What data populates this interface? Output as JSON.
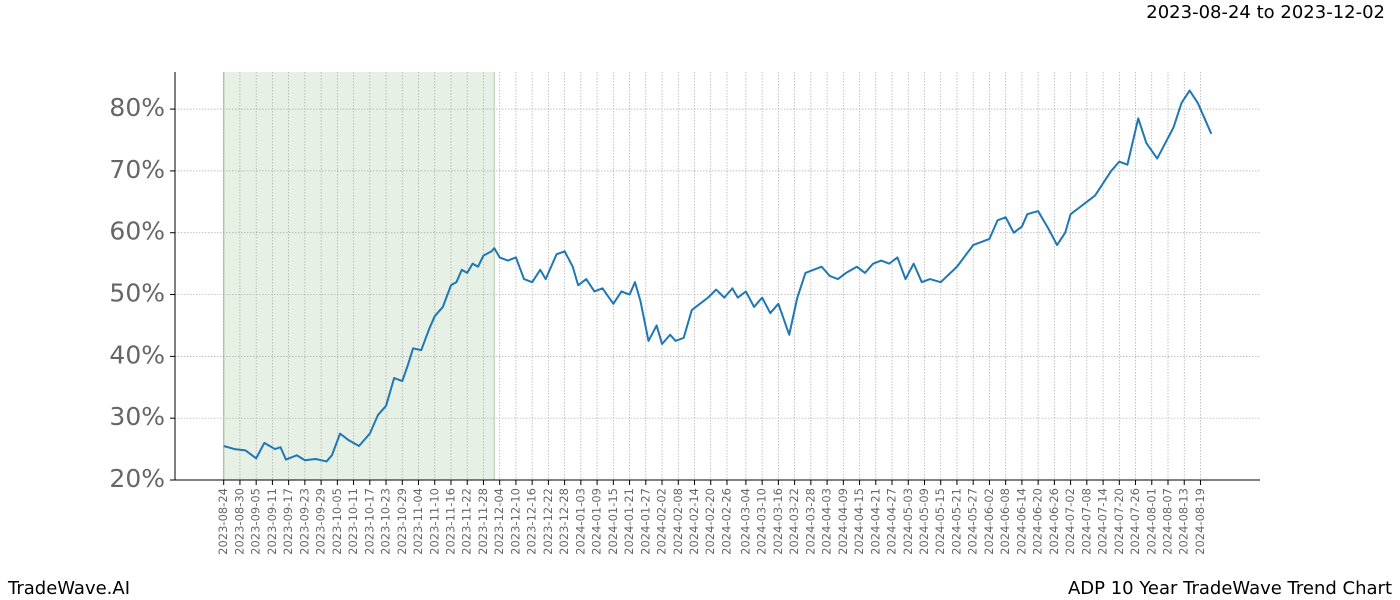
{
  "chart_data": {
    "type": "line",
    "title": "2023-08-24 to 2023-12-02",
    "brand": "TradeWave.AI",
    "subtitle": "ADP 10 Year TradeWave Trend Chart",
    "highlight": {
      "start": "2023-08-24",
      "end": "2023-12-02",
      "color": "#e6f0e4"
    },
    "grid": true,
    "xlim": [
      "2023-08-06",
      "2024-09-10"
    ],
    "xticks": [
      "2023-08-24",
      "2023-08-30",
      "2023-09-05",
      "2023-09-11",
      "2023-09-17",
      "2023-09-23",
      "2023-09-29",
      "2023-10-05",
      "2023-10-11",
      "2023-10-17",
      "2023-10-23",
      "2023-10-29",
      "2023-11-04",
      "2023-11-10",
      "2023-11-16",
      "2023-11-22",
      "2023-11-28",
      "2023-12-04",
      "2023-12-10",
      "2023-12-16",
      "2023-12-22",
      "2023-12-28",
      "2024-01-03",
      "2024-01-09",
      "2024-01-15",
      "2024-01-21",
      "2024-01-27",
      "2024-02-02",
      "2024-02-08",
      "2024-02-14",
      "2024-02-20",
      "2024-02-26",
      "2024-03-04",
      "2024-03-10",
      "2024-03-16",
      "2024-03-22",
      "2024-03-28",
      "2024-04-03",
      "2024-04-09",
      "2024-04-15",
      "2024-04-21",
      "2024-04-27",
      "2024-05-03",
      "2024-05-09",
      "2024-05-15",
      "2024-05-21",
      "2024-05-27",
      "2024-06-02",
      "2024-06-08",
      "2024-06-14",
      "2024-06-20",
      "2024-06-26",
      "2024-07-02",
      "2024-07-08",
      "2024-07-14",
      "2024-07-20",
      "2024-07-26",
      "2024-08-01",
      "2024-08-07",
      "2024-08-13",
      "2024-08-19"
    ],
    "ylim": [
      20,
      86
    ],
    "yticks": [
      {
        "value": 20,
        "label": "20%"
      },
      {
        "value": 30,
        "label": "30%"
      },
      {
        "value": 40,
        "label": "40%"
      },
      {
        "value": 50,
        "label": "50%"
      },
      {
        "value": 60,
        "label": "60%"
      },
      {
        "value": 70,
        "label": "70%"
      },
      {
        "value": 80,
        "label": "80%"
      }
    ],
    "series": [
      {
        "name": "ADP",
        "color": "#1f77b4",
        "x": [
          "2023-08-24",
          "2023-08-28",
          "2023-09-01",
          "2023-09-05",
          "2023-09-08",
          "2023-09-12",
          "2023-09-14",
          "2023-09-16",
          "2023-09-20",
          "2023-09-23",
          "2023-09-27",
          "2023-10-01",
          "2023-10-03",
          "2023-10-06",
          "2023-10-09",
          "2023-10-13",
          "2023-10-17",
          "2023-10-20",
          "2023-10-23",
          "2023-10-26",
          "2023-10-29",
          "2023-10-31",
          "2023-11-02",
          "2023-11-05",
          "2023-11-08",
          "2023-11-10",
          "2023-11-13",
          "2023-11-16",
          "2023-11-18",
          "2023-11-20",
          "2023-11-22",
          "2023-11-24",
          "2023-11-26",
          "2023-11-28",
          "2023-12-01",
          "2023-12-02",
          "2023-12-04",
          "2023-12-07",
          "2023-12-10",
          "2023-12-13",
          "2023-12-16",
          "2023-12-19",
          "2023-12-21",
          "2023-12-25",
          "2023-12-28",
          "2023-12-31",
          "2024-01-02",
          "2024-01-05",
          "2024-01-08",
          "2024-01-11",
          "2024-01-15",
          "2024-01-18",
          "2024-01-21",
          "2024-01-23",
          "2024-01-25",
          "2024-01-28",
          "2024-01-31",
          "2024-02-02",
          "2024-02-05",
          "2024-02-07",
          "2024-02-10",
          "2024-02-13",
          "2024-02-16",
          "2024-02-19",
          "2024-02-22",
          "2024-02-25",
          "2024-02-28",
          "2024-03-01",
          "2024-03-04",
          "2024-03-07",
          "2024-03-10",
          "2024-03-13",
          "2024-03-16",
          "2024-03-20",
          "2024-03-23",
          "2024-03-26",
          "2024-03-29",
          "2024-04-01",
          "2024-04-04",
          "2024-04-07",
          "2024-04-10",
          "2024-04-14",
          "2024-04-17",
          "2024-04-20",
          "2024-04-23",
          "2024-04-26",
          "2024-04-29",
          "2024-05-02",
          "2024-05-05",
          "2024-05-08",
          "2024-05-11",
          "2024-05-15",
          "2024-05-21",
          "2024-05-27",
          "2024-06-02",
          "2024-06-05",
          "2024-06-08",
          "2024-06-11",
          "2024-06-14",
          "2024-06-16",
          "2024-06-20",
          "2024-06-24",
          "2024-06-27",
          "2024-06-30",
          "2024-07-02",
          "2024-07-05",
          "2024-07-08",
          "2024-07-11",
          "2024-07-14",
          "2024-07-17",
          "2024-07-20",
          "2024-07-23",
          "2024-07-27",
          "2024-07-30",
          "2024-08-03",
          "2024-08-06",
          "2024-08-09",
          "2024-08-12",
          "2024-08-15",
          "2024-08-18",
          "2024-08-21",
          "2024-08-23"
        ],
        "values": [
          25.5,
          25,
          24.8,
          23.5,
          26,
          25,
          25.3,
          23.3,
          24,
          23.2,
          23.4,
          23,
          24,
          27.5,
          26.5,
          25.5,
          27.5,
          30.5,
          32,
          36.5,
          36,
          38.5,
          41.3,
          41,
          44.5,
          46.5,
          48,
          51.5,
          52,
          54,
          53.5,
          55,
          54.5,
          56.3,
          57,
          57.5,
          56,
          55.5,
          56,
          52.5,
          52,
          54,
          52.5,
          56.5,
          57,
          54.5,
          51.5,
          52.5,
          50.5,
          51,
          48.5,
          50.5,
          50,
          52,
          49,
          42.5,
          45,
          42,
          43.5,
          42.5,
          43,
          47.5,
          48.5,
          49.5,
          50.8,
          49.5,
          51,
          49.5,
          50.5,
          48,
          49.5,
          47,
          48.5,
          43.5,
          49.5,
          53.5,
          54,
          54.5,
          53,
          52.5,
          53.5,
          54.5,
          53.5,
          55,
          55.5,
          55,
          56,
          52.5,
          55,
          52,
          52.5,
          52,
          54.5,
          58,
          59,
          62,
          62.5,
          60,
          61,
          63,
          63.5,
          60.5,
          58,
          60,
          63,
          64,
          65,
          66,
          68,
          70,
          71.5,
          71,
          78.5,
          74.5,
          72,
          74.5,
          77,
          81,
          83,
          81,
          78,
          76
        ]
      }
    ]
  }
}
